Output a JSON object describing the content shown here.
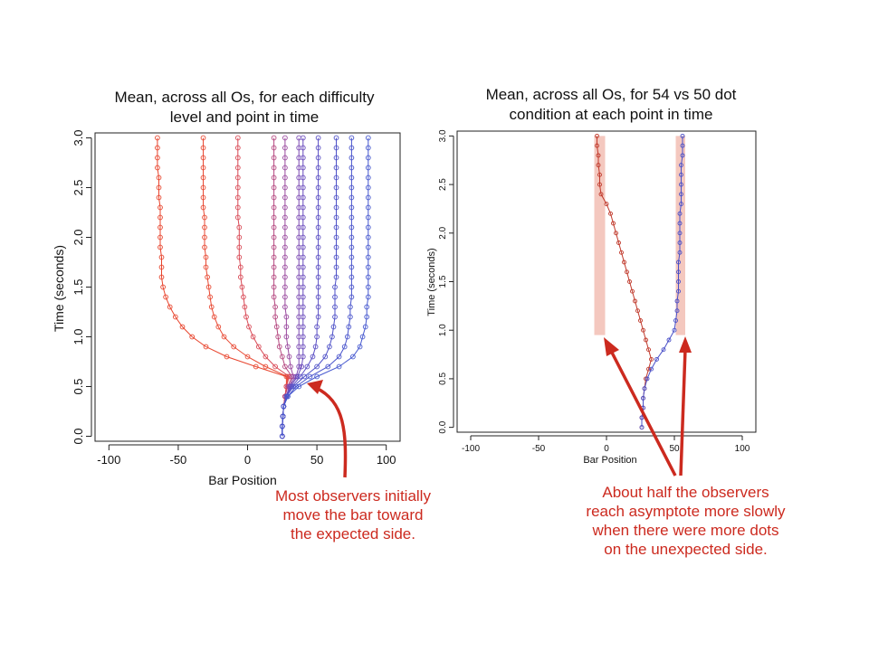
{
  "colors": {
    "red": "#e8452e",
    "blue": "#4a50c8",
    "annotation": "#cc2a1f",
    "highlight": "#f4c8bf"
  },
  "annotations": {
    "left": {
      "lines": [
        "Most observers initially",
        "move the bar toward",
        "the expected side."
      ]
    },
    "right": {
      "lines": [
        "About half the observers",
        "reach asymptote more slowly",
        "when there were more dots",
        "on the unexpected side."
      ]
    }
  },
  "chart_data": [
    {
      "type": "line",
      "title_lines": [
        "Mean, across all Os, for each difficulty",
        "level and point in time"
      ],
      "xlabel": "Bar Position",
      "ylabel": "Time (seconds)",
      "xlim": [
        -110,
        110
      ],
      "ylim": [
        -0.05,
        3.05
      ],
      "xticks": [
        "-100",
        "-50",
        "0",
        "50",
        "100"
      ],
      "yticks": [
        "0.0",
        "0.5",
        "1.0",
        "1.5",
        "2.0",
        "2.5",
        "3.0"
      ],
      "grid": false,
      "markers": "open-circle",
      "y": [
        0.0,
        0.1,
        0.2,
        0.3,
        0.4,
        0.5,
        0.6,
        0.7,
        0.8,
        0.9,
        1.0,
        1.1,
        1.2,
        1.3,
        1.4,
        1.5,
        1.6,
        1.7,
        1.8,
        1.9,
        2.0,
        2.1,
        2.2,
        2.3,
        2.4,
        2.5,
        2.6,
        2.7,
        2.8,
        2.9,
        3.0
      ],
      "series": [
        {
          "color": "#e8452e",
          "x": [
            25,
            25,
            25.5,
            26,
            27,
            28,
            28,
            6,
            -15,
            -30,
            -40,
            -47,
            -52,
            -56,
            -59,
            -61,
            -62,
            -62,
            -62,
            -63,
            -63,
            -63,
            -63,
            -63,
            -64,
            -64,
            -64,
            -65,
            -65,
            -65,
            -65
          ]
        },
        {
          "color": "#e84a34",
          "x": [
            25,
            25,
            25.5,
            26,
            27,
            28,
            29,
            13,
            0,
            -10,
            -17,
            -21,
            -24,
            -26,
            -27,
            -28,
            -29,
            -30,
            -30,
            -31,
            -31,
            -31,
            -31,
            -32,
            -32,
            -32,
            -32,
            -32,
            -32,
            -32,
            -32
          ]
        },
        {
          "color": "#d94a56",
          "x": [
            25,
            25,
            25.5,
            26,
            27,
            28,
            30,
            20,
            13,
            8,
            4,
            1,
            -1,
            -2,
            -3,
            -4,
            -5,
            -5,
            -6,
            -6,
            -6,
            -6,
            -7,
            -7,
            -7,
            -7,
            -7,
            -7,
            -7,
            -7,
            -7
          ]
        },
        {
          "color": "#b54880",
          "x": [
            25,
            25,
            25.5,
            26,
            27,
            29,
            32,
            27,
            25,
            23,
            22,
            21,
            20,
            20,
            19,
            19,
            19,
            19,
            19,
            19,
            19,
            19,
            19,
            19,
            19,
            19,
            19,
            19,
            19,
            19,
            19
          ]
        },
        {
          "color": "#9a4a9f",
          "x": [
            25,
            25,
            25.5,
            26,
            28,
            30,
            33,
            31,
            30,
            29,
            28,
            28,
            28,
            27,
            27,
            27,
            27,
            27,
            27,
            27,
            27,
            27,
            27,
            27,
            27,
            27,
            27,
            27,
            27,
            27,
            27
          ]
        },
        {
          "color": "#7c4bb4",
          "x": [
            25,
            25,
            25.5,
            26,
            28,
            30,
            35,
            37,
            37,
            37,
            37,
            37,
            37,
            37,
            37,
            37,
            37,
            37,
            37,
            37,
            37,
            37,
            37,
            37,
            37,
            37,
            37,
            37,
            37,
            37,
            37
          ]
        },
        {
          "color": "#6a4cbd",
          "x": [
            25,
            25,
            25.5,
            26,
            28,
            31,
            36,
            39,
            40,
            40,
            40,
            40,
            40,
            40,
            40,
            40,
            40,
            40,
            40,
            40,
            40,
            40,
            40,
            40,
            40,
            40,
            40,
            40,
            40,
            40,
            40
          ]
        },
        {
          "color": "#5a4ec4",
          "x": [
            25,
            25,
            25.5,
            26,
            28,
            32,
            38,
            43,
            47,
            49,
            50,
            50,
            51,
            51,
            51,
            51,
            51,
            51,
            51,
            51,
            51,
            51,
            51,
            51,
            51,
            51,
            51,
            51,
            51,
            51,
            51
          ]
        },
        {
          "color": "#4f52c8",
          "x": [
            25,
            25,
            25.5,
            26,
            28,
            33,
            41,
            50,
            56,
            59,
            61,
            62,
            63,
            63,
            63,
            63,
            64,
            64,
            64,
            64,
            64,
            64,
            64,
            64,
            64,
            64,
            64,
            64,
            64,
            64,
            64
          ]
        },
        {
          "color": "#4a55cc",
          "x": [
            25,
            25,
            25.5,
            26,
            29,
            35,
            45,
            58,
            66,
            70,
            72,
            73,
            74,
            74,
            75,
            75,
            75,
            75,
            75,
            75,
            75,
            75,
            75,
            75,
            75,
            75,
            75,
            75,
            75,
            75,
            75
          ]
        },
        {
          "color": "#4658cf",
          "x": [
            25,
            25,
            25.5,
            26,
            29,
            37,
            50,
            66,
            76,
            81,
            83,
            85,
            86,
            86,
            87,
            87,
            87,
            87,
            87,
            87,
            87,
            87,
            87,
            87,
            87,
            87,
            87,
            87,
            87,
            87,
            87
          ]
        }
      ]
    },
    {
      "type": "line",
      "title_lines": [
        "Mean, across all Os, for 54 vs 50 dot",
        "condition at each point in time"
      ],
      "xlabel": "Bar Position",
      "ylabel": "Time (seconds)",
      "xlim": [
        -110,
        110
      ],
      "ylim": [
        -0.05,
        3.05
      ],
      "xticks": [
        "-100",
        "-50",
        "0",
        "50",
        "100"
      ],
      "yticks": [
        "0.0",
        "0.5",
        "1.0",
        "1.5",
        "2.0",
        "2.5",
        "3.0"
      ],
      "grid": false,
      "markers": "open-circle",
      "y": [
        0.0,
        0.1,
        0.2,
        0.3,
        0.4,
        0.5,
        0.6,
        0.7,
        0.8,
        0.9,
        1.0,
        1.1,
        1.2,
        1.3,
        1.4,
        1.5,
        1.6,
        1.7,
        1.8,
        1.9,
        2.0,
        2.1,
        2.2,
        2.3,
        2.4,
        2.5,
        2.6,
        2.7,
        2.8,
        2.9,
        3.0
      ],
      "highlight_bands": [
        {
          "x": [
            -9,
            -1
          ],
          "y": [
            0.95,
            3.0
          ]
        },
        {
          "x": [
            51,
            58
          ],
          "y": [
            0.95,
            3.0
          ]
        }
      ],
      "series": [
        {
          "color": "#c0392b",
          "x": [
            26,
            26,
            27,
            27,
            28,
            29,
            31,
            33,
            31,
            29,
            27,
            25,
            23,
            21,
            19,
            17,
            15,
            13,
            11,
            9,
            7,
            5,
            3,
            0,
            -4,
            -5,
            -5,
            -6,
            -6,
            -7,
            -7
          ]
        },
        {
          "color": "#4a50c8",
          "x": [
            26,
            26,
            27,
            27,
            28,
            30,
            33,
            37,
            42,
            46,
            50,
            51,
            52,
            52,
            53,
            53,
            53,
            53,
            54,
            54,
            54,
            54,
            54,
            55,
            55,
            55,
            55,
            55,
            56,
            56,
            56
          ]
        }
      ]
    }
  ]
}
